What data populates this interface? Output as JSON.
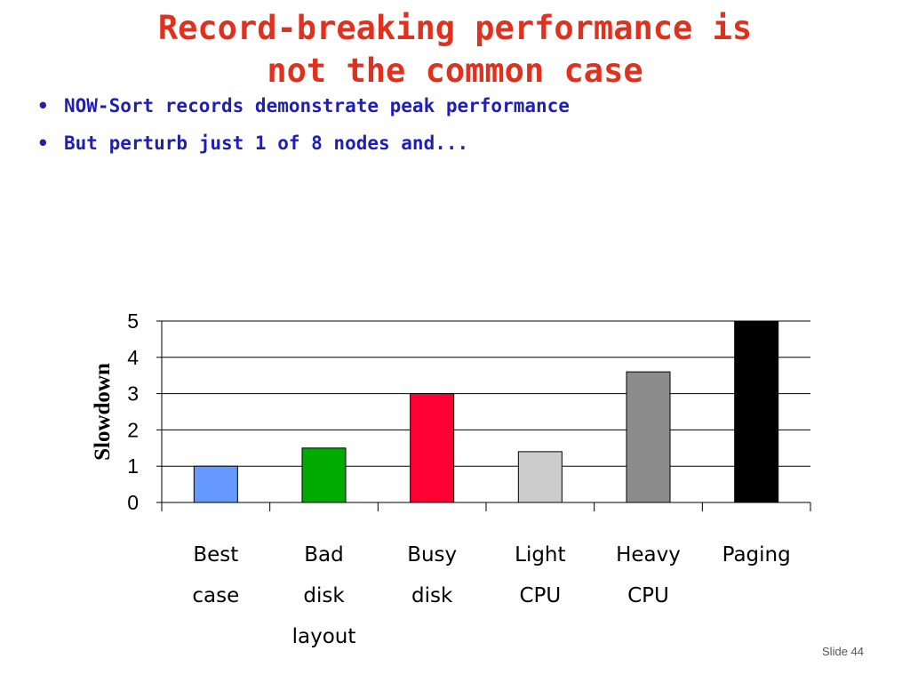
{
  "slide": {
    "title_line1": "Record-breaking performance is",
    "title_line2": "not the common case",
    "bullets": [
      "NOW-Sort records demonstrate peak performance",
      "But perturb just 1 of 8 nodes and..."
    ],
    "bullet_glyph": "•",
    "slide_number": "Slide 44"
  },
  "chart_data": {
    "type": "bar",
    "title": "",
    "xlabel": "",
    "ylabel": "Slowdown",
    "ylim": [
      0,
      5
    ],
    "yticks": [
      0,
      1,
      2,
      3,
      4,
      5
    ],
    "grid": true,
    "legend": "none",
    "categories": [
      [
        "Best",
        "case"
      ],
      [
        "Bad",
        "disk",
        "layout"
      ],
      [
        "Busy",
        "disk"
      ],
      [
        "Light",
        "CPU"
      ],
      [
        "Heavy",
        "CPU"
      ],
      [
        "Paging"
      ]
    ],
    "values": [
      1.0,
      1.5,
      3.0,
      1.4,
      3.6,
      5.0
    ],
    "colors": [
      "#6699ff",
      "#00aa00",
      "#ff0033",
      "#cccccc",
      "#8c8c8c",
      "#000000"
    ]
  }
}
